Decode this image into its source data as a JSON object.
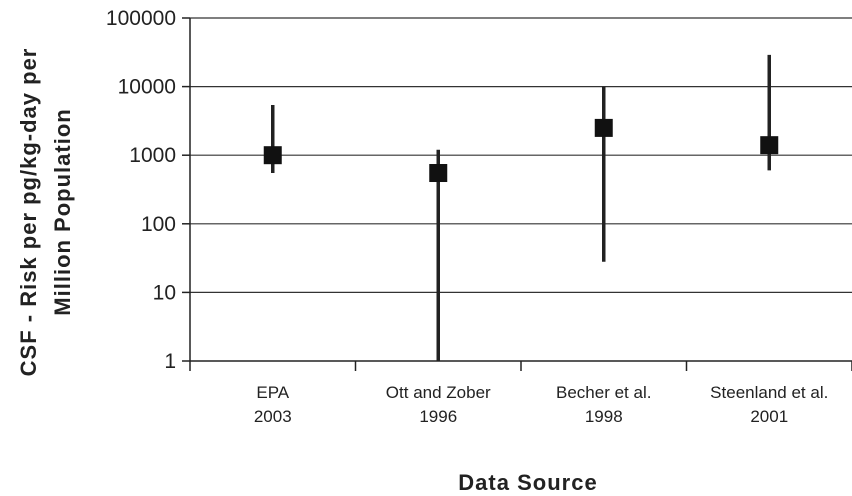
{
  "chart_data": {
    "type": "scatter",
    "title": "",
    "xlabel": "Data Source",
    "ylabel_lines": [
      "CSF - Risk per pg/kg-day per",
      "Million Population"
    ],
    "yscale": "log",
    "ylim": [
      1,
      100000
    ],
    "yticks": [
      "1",
      "10",
      "100",
      "1000",
      "10000",
      "100000"
    ],
    "ytick_values": [
      1,
      10,
      100,
      1000,
      10000,
      100000
    ],
    "grid": "horizontal",
    "legend": "none",
    "categories": [
      {
        "line1": "EPA",
        "line2": "2003"
      },
      {
        "line1": "Ott and Zober",
        "line2": "1996"
      },
      {
        "line1": "Becher et al.",
        "line2": "1998"
      },
      {
        "line1": "Steenland et al.",
        "line2": "2001"
      }
    ],
    "series": [
      {
        "values": [
          1000,
          550,
          2500,
          1400
        ],
        "low": [
          550,
          1,
          28,
          600
        ],
        "high": [
          5400,
          1200,
          10000,
          29000
        ]
      }
    ],
    "marker_color": "#111111",
    "line_color": "#222222"
  }
}
